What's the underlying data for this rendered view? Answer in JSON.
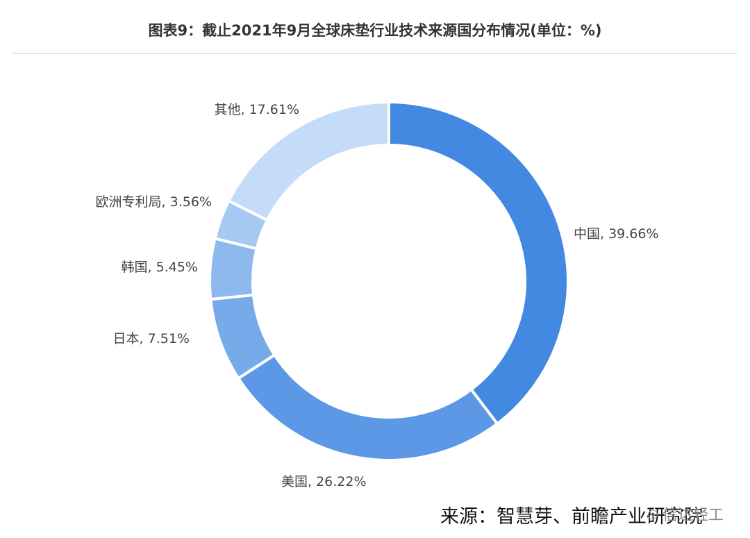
{
  "header": {
    "title": "图表9：截止2021年9月全球床垫行业技术来源国分布情况(单位：%)"
  },
  "chart_data": {
    "type": "pie",
    "variant": "donut",
    "title": "图表9：截止2021年9月全球床垫行业技术来源国分布情况(单位：%)",
    "slices": [
      {
        "label": "中国, 39.66%",
        "name": "中国",
        "value": 39.66,
        "color": "#4388e1"
      },
      {
        "label": "美国, 26.22%",
        "name": "美国",
        "value": 26.22,
        "color": "#5c98e6"
      },
      {
        "label": "日本, 7.51%",
        "name": "日本",
        "value": 7.51,
        "color": "#77aaea"
      },
      {
        "label": "韩国, 5.45%",
        "name": "韩国",
        "value": 5.45,
        "color": "#8db9ef"
      },
      {
        "label": "欧洲专利局, 3.56%",
        "name": "欧洲专利局",
        "value": 3.56,
        "color": "#a6c9f3"
      },
      {
        "label": "其他, 17.61%",
        "name": "其他",
        "value": 17.61,
        "color": "#c4dcf8"
      }
    ],
    "legend": "none",
    "grid": false
  },
  "footer": {
    "source": "来源：智慧芽、前瞻产业研究院",
    "watermark": "信达轻工"
  }
}
